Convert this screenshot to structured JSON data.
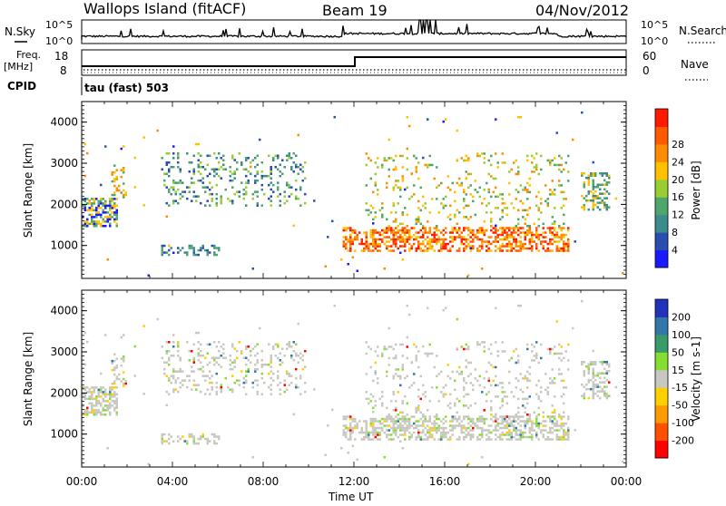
{
  "header": {
    "station": "Wallops Island (fitACF)",
    "beam": "Beam 19",
    "date": "04/Nov/2012"
  },
  "noise_panel": {
    "left_label": "N.Sky",
    "right_label": "N.Search",
    "ticks": [
      "10^5",
      "10^0"
    ]
  },
  "freq_panel": {
    "left_label_1": "Freq.",
    "left_label_2": "[MHz]",
    "left_ticks": [
      "18",
      "8"
    ],
    "right_label": "Nave",
    "right_ticks": [
      "60",
      "0"
    ],
    "cpid_label": "CPID",
    "program": "tau (fast) 503"
  },
  "chart_data": [
    {
      "type": "heatmap",
      "panel": "power",
      "ylabel": "Slant Range [km]",
      "yticks": [
        1000,
        2000,
        3000,
        4000
      ],
      "ylim": [
        200,
        4500
      ],
      "xlabel": "Time UT",
      "xticks": [
        "00:00",
        "04:00",
        "08:00",
        "12:00",
        "16:00",
        "20:00",
        "00:00"
      ],
      "xlim_hours": [
        0,
        24
      ],
      "colorbar_label": "Power [dB]",
      "colorbar_ticks": [
        4,
        8,
        12,
        16,
        20,
        24,
        28
      ],
      "colors": [
        "#1a1aff",
        "#2a4db0",
        "#3d8c8c",
        "#4fa66a",
        "#9acd32",
        "#ffc000",
        "#ff8c00",
        "#ff5a00",
        "#ff1a00"
      ]
    },
    {
      "type": "heatmap",
      "panel": "velocity",
      "ylabel": "Slant Range [km]",
      "yticks": [
        1000,
        2000,
        3000,
        4000
      ],
      "ylim": [
        200,
        4500
      ],
      "colorbar_label": "Velocity [m s-1]",
      "colorbar_ticks": [
        200,
        100,
        50,
        15,
        -15,
        -50,
        -100,
        -200
      ],
      "colors": [
        "#2233bb",
        "#3377aa",
        "#3a9a6a",
        "#88dd33",
        "#c8c8c0",
        "#ffd000",
        "#ff9a00",
        "#ff5000",
        "#ff0000"
      ]
    }
  ]
}
